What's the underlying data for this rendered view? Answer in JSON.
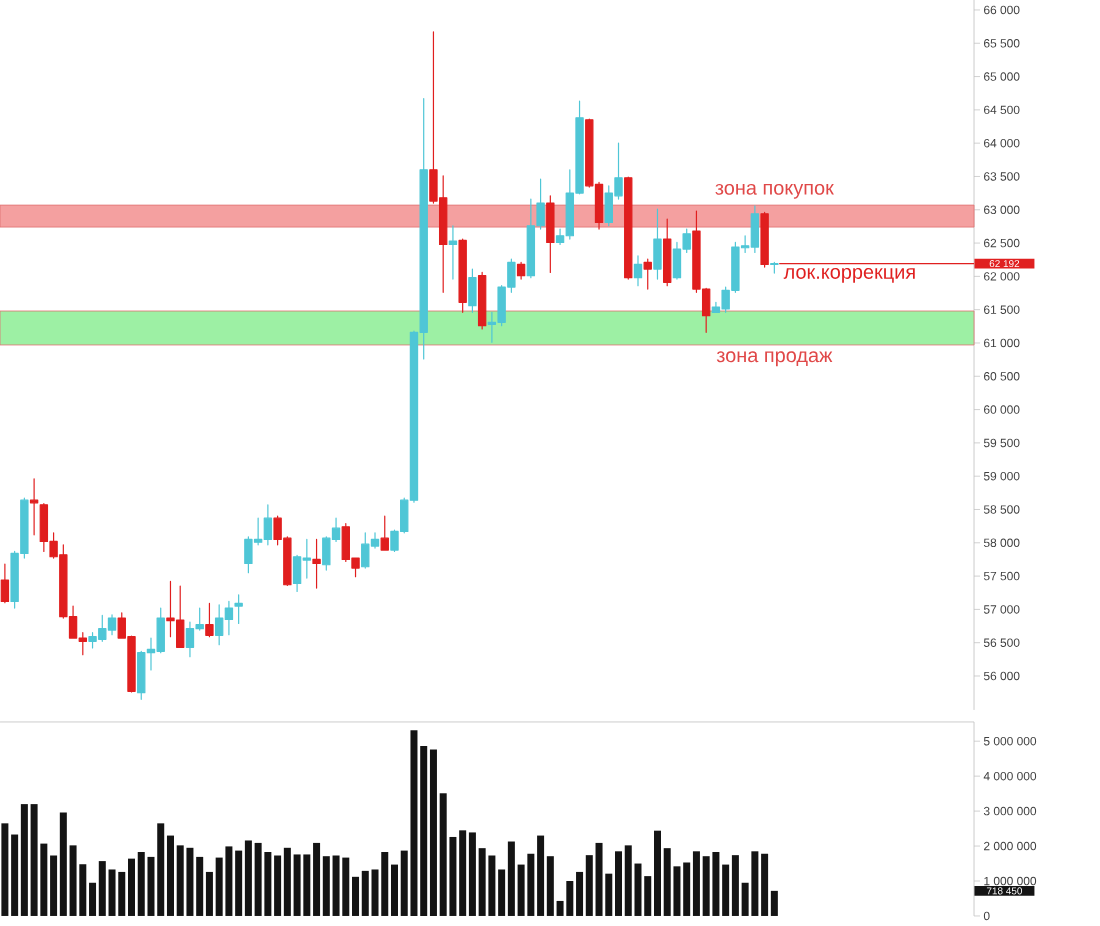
{
  "chart_data": [
    {
      "type": "candlestick",
      "categories": [
        null,
        null,
        null,
        null,
        null,
        null,
        null,
        null,
        null,
        null,
        null,
        null,
        null,
        null,
        null,
        null,
        null,
        null,
        null,
        null,
        null,
        null,
        null,
        null,
        null,
        null,
        null,
        null,
        null,
        null,
        null,
        null,
        null,
        null,
        null,
        null,
        null,
        null,
        null,
        null,
        null,
        null,
        null,
        null,
        null,
        null,
        null,
        null,
        null,
        null,
        null,
        null,
        null,
        null,
        null,
        null,
        null,
        null,
        null,
        null,
        null,
        null,
        null,
        null,
        null,
        null,
        null,
        null,
        null,
        null,
        null,
        null,
        null,
        null,
        null,
        null,
        null,
        null,
        null,
        null,
        null,
        null,
        null,
        null,
        null,
        null,
        null,
        null,
        null,
        null,
        null,
        null,
        null,
        null,
        null,
        null,
        null,
        null,
        null,
        null
      ],
      "ohlc": [
        [
          57440,
          57680,
          57100,
          57120
        ],
        [
          57120,
          57870,
          57020,
          57840
        ],
        [
          57840,
          58670,
          57770,
          58640
        ],
        [
          58640,
          58960,
          58120,
          58600
        ],
        [
          58570,
          58590,
          57870,
          58020
        ],
        [
          58020,
          58150,
          57770,
          57790
        ],
        [
          57820,
          57970,
          56870,
          56890
        ],
        [
          56890,
          57050,
          56570,
          56570
        ],
        [
          56570,
          56650,
          56320,
          56520
        ],
        [
          56520,
          56650,
          56420,
          56590
        ],
        [
          56550,
          56910,
          56520,
          56710
        ],
        [
          56690,
          56920,
          56620,
          56870
        ],
        [
          56870,
          56950,
          56570,
          56570
        ],
        [
          56590,
          56600,
          55760,
          55770
        ],
        [
          55750,
          56370,
          55650,
          56350
        ],
        [
          56350,
          56570,
          56090,
          56400
        ],
        [
          56370,
          57020,
          56350,
          56870
        ],
        [
          56870,
          57420,
          56590,
          56830
        ],
        [
          56840,
          57350,
          56430,
          56430
        ],
        [
          56430,
          56810,
          56290,
          56710
        ],
        [
          56710,
          57020,
          56690,
          56770
        ],
        [
          56770,
          57090,
          56590,
          56610
        ],
        [
          56610,
          57070,
          56470,
          56870
        ],
        [
          56850,
          57120,
          56620,
          57020
        ],
        [
          57050,
          57220,
          56790,
          57090
        ],
        [
          57690,
          58090,
          57550,
          58050
        ],
        [
          58010,
          58370,
          57970,
          58050
        ],
        [
          58050,
          58570,
          57970,
          58370
        ],
        [
          58370,
          58400,
          57970,
          58050
        ],
        [
          58070,
          58090,
          57360,
          57370
        ],
        [
          57390,
          57810,
          57270,
          57790
        ],
        [
          57740,
          58050,
          57470,
          57770
        ],
        [
          57750,
          58050,
          57320,
          57690
        ],
        [
          57670,
          58090,
          57590,
          58070
        ],
        [
          58050,
          58370,
          58020,
          58220
        ],
        [
          58240,
          58290,
          57720,
          57750
        ],
        [
          57770,
          57770,
          57490,
          57620
        ],
        [
          57640,
          58150,
          57620,
          57980
        ],
        [
          57950,
          58150,
          57920,
          58050
        ],
        [
          58070,
          58400,
          57890,
          57890
        ],
        [
          57890,
          58190,
          57870,
          58170
        ],
        [
          58170,
          58670,
          58150,
          58640
        ],
        [
          58640,
          61180,
          58610,
          61160
        ],
        [
          61160,
          64670,
          60760,
          63600
        ],
        [
          63600,
          65670,
          63100,
          63130
        ],
        [
          63180,
          63510,
          61760,
          62480
        ],
        [
          62480,
          62760,
          61960,
          62530
        ],
        [
          62540,
          62560,
          61460,
          61610
        ],
        [
          61560,
          62110,
          61460,
          61980
        ],
        [
          62010,
          62060,
          61210,
          61260
        ],
        [
          61280,
          61460,
          61010,
          61310
        ],
        [
          61310,
          61860,
          61260,
          61840
        ],
        [
          61840,
          62260,
          61760,
          62210
        ],
        [
          62180,
          62210,
          61960,
          62010
        ],
        [
          62010,
          63160,
          61980,
          62760
        ],
        [
          62760,
          63460,
          62710,
          63100
        ],
        [
          63100,
          63210,
          62060,
          62510
        ],
        [
          62510,
          62710,
          62480,
          62610
        ],
        [
          62610,
          63600,
          62560,
          63250
        ],
        [
          63250,
          64630,
          63240,
          64380
        ],
        [
          64350,
          64360,
          63340,
          63360
        ],
        [
          63380,
          63410,
          62710,
          62810
        ],
        [
          62810,
          63360,
          62760,
          63250
        ],
        [
          63210,
          64000,
          63160,
          63480
        ],
        [
          63480,
          63490,
          61960,
          61980
        ],
        [
          61980,
          62310,
          61860,
          62180
        ],
        [
          62210,
          62260,
          61810,
          62110
        ],
        [
          62110,
          63010,
          61960,
          62560
        ],
        [
          62560,
          62860,
          61860,
          61910
        ],
        [
          61980,
          62510,
          61960,
          62410
        ],
        [
          62410,
          62710,
          62360,
          62640
        ],
        [
          62680,
          62980,
          61760,
          61810
        ],
        [
          61810,
          61820,
          61160,
          61410
        ],
        [
          61460,
          61610,
          61460,
          61540
        ],
        [
          61510,
          61840,
          61460,
          61790
        ],
        [
          61790,
          62510,
          61760,
          62440
        ],
        [
          62430,
          62610,
          62360,
          62460
        ],
        [
          62440,
          63060,
          62360,
          62940
        ],
        [
          62940,
          62960,
          62140,
          62180
        ],
        [
          62180,
          62210,
          62050,
          62192
        ],
        null,
        null,
        null,
        null,
        null,
        null,
        null,
        null,
        null,
        null,
        null,
        null,
        null,
        null,
        null,
        null,
        null,
        null,
        null,
        null
      ],
      "colors": [
        "#e01e1e",
        "#4fc6d6",
        "#4fc6d6",
        "#e01e1e",
        "#e01e1e",
        "#e01e1e",
        "#e01e1e",
        "#e01e1e",
        "#e01e1e",
        "#4fc6d6",
        "#4fc6d6",
        "#4fc6d6",
        "#e01e1e",
        "#e01e1e",
        "#4fc6d6",
        "#4fc6d6",
        "#4fc6d6",
        "#e01e1e",
        "#e01e1e",
        "#4fc6d6",
        "#4fc6d6",
        "#e01e1e",
        "#4fc6d6",
        "#4fc6d6",
        "#4fc6d6",
        "#4fc6d6",
        "#4fc6d6",
        "#4fc6d6",
        "#e01e1e",
        "#e01e1e",
        "#4fc6d6",
        "#4fc6d6",
        "#e01e1e",
        "#4fc6d6",
        "#4fc6d6",
        "#e01e1e",
        "#e01e1e",
        "#4fc6d6",
        "#4fc6d6",
        "#e01e1e",
        "#4fc6d6",
        "#4fc6d6",
        "#4fc6d6",
        "#4fc6d6",
        "#e01e1e",
        "#e01e1e",
        "#4fc6d6",
        "#e01e1e",
        "#4fc6d6",
        "#e01e1e",
        "#4fc6d6",
        "#4fc6d6",
        "#4fc6d6",
        "#e01e1e",
        "#4fc6d6",
        "#4fc6d6",
        "#e01e1e",
        "#4fc6d6",
        "#4fc6d6",
        "#4fc6d6",
        "#e01e1e",
        "#e01e1e",
        "#4fc6d6",
        "#4fc6d6",
        "#e01e1e",
        "#4fc6d6",
        "#e01e1e",
        "#4fc6d6",
        "#e01e1e",
        "#4fc6d6",
        "#4fc6d6",
        "#e01e1e",
        "#e01e1e",
        "#4fc6d6",
        "#4fc6d6",
        "#4fc6d6",
        "#4fc6d6",
        "#4fc6d6",
        "#e01e1e",
        "#4fc6d6",
        null,
        null,
        null,
        null,
        null,
        null,
        null,
        null,
        null,
        null,
        null,
        null,
        null,
        null,
        null,
        null,
        null,
        null,
        null,
        null
      ],
      "ylim": [
        55490,
        66150
      ],
      "yticks": [
        {
          "value": 56000,
          "label": "56 000"
        },
        {
          "value": 56500,
          "label": "56 500"
        },
        {
          "value": 57000,
          "label": "57 000"
        },
        {
          "value": 57500,
          "label": "57 500"
        },
        {
          "value": 58000,
          "label": "58 000"
        },
        {
          "value": 58500,
          "label": "58 500"
        },
        {
          "value": 59000,
          "label": "59 000"
        },
        {
          "value": 59500,
          "label": "59 500"
        },
        {
          "value": 60000,
          "label": "60 000"
        },
        {
          "value": 60500,
          "label": "60 500"
        },
        {
          "value": 61000,
          "label": "61 000"
        },
        {
          "value": 61500,
          "label": "61 500"
        },
        {
          "value": 62000,
          "label": "62 000"
        },
        {
          "value": 62500,
          "label": "62 500"
        },
        {
          "value": 63000,
          "label": "63 000"
        },
        {
          "value": 63500,
          "label": "63 500"
        },
        {
          "value": 64000,
          "label": "64 000"
        },
        {
          "value": 64500,
          "label": "64 500"
        },
        {
          "value": 65000,
          "label": "65 000"
        },
        {
          "value": 65500,
          "label": "65 500"
        },
        {
          "value": 66000,
          "label": "66 000"
        }
      ],
      "tick_labels": "y",
      "bands": [
        {
          "axis": "y",
          "from": 62740,
          "to": 63070,
          "label": "зона покупок",
          "color": "#f4a0a0"
        },
        {
          "axis": "y",
          "from": 60970,
          "to": 61480,
          "label": "зона продаж",
          "color": "#9df0a4"
        }
      ],
      "ref_lines": [
        {
          "axis": "y",
          "value": 62192,
          "label": "лок.коррекция",
          "color": "#e02020"
        }
      ],
      "annotations": [
        "62 192"
      ]
    },
    {
      "type": "bar",
      "categories": [
        null,
        null,
        null,
        null,
        null,
        null,
        null,
        null,
        null,
        null,
        null,
        null,
        null,
        null,
        null,
        null,
        null,
        null,
        null,
        null,
        null,
        null,
        null,
        null,
        null,
        null,
        null,
        null,
        null,
        null,
        null,
        null,
        null,
        null,
        null,
        null,
        null,
        null,
        null,
        null,
        null,
        null,
        null,
        null,
        null,
        null,
        null,
        null,
        null,
        null,
        null,
        null,
        null,
        null,
        null,
        null,
        null,
        null,
        null,
        null,
        null,
        null,
        null,
        null,
        null,
        null,
        null,
        null,
        null,
        null,
        null,
        null,
        null,
        null,
        null,
        null,
        null,
        null,
        null,
        null,
        null,
        null,
        null,
        null,
        null,
        null,
        null,
        null,
        null,
        null,
        null,
        null,
        null,
        null,
        null,
        null,
        null,
        null,
        null,
        null
      ],
      "values": [
        2650000,
        2330000,
        3200000,
        3200000,
        2070000,
        1730000,
        2960000,
        2020000,
        1480000,
        950000,
        1570000,
        1330000,
        1260000,
        1640000,
        1830000,
        1690000,
        2650000,
        2300000,
        2020000,
        1950000,
        1690000,
        1260000,
        1670000,
        1990000,
        1870000,
        2160000,
        2090000,
        1830000,
        1730000,
        1950000,
        1760000,
        1760000,
        2090000,
        1710000,
        1730000,
        1670000,
        1120000,
        1290000,
        1330000,
        1830000,
        1470000,
        1870000,
        5310000,
        4860000,
        4760000,
        3510000,
        2260000,
        2450000,
        2390000,
        1940000,
        1730000,
        1330000,
        2130000,
        1470000,
        1780000,
        2300000,
        1710000,
        430000,
        1000000,
        1260000,
        1740000,
        2090000,
        1210000,
        1850000,
        2020000,
        1500000,
        1140000,
        2440000,
        1940000,
        1420000,
        1530000,
        1850000,
        1710000,
        1830000,
        1470000,
        1740000,
        950000,
        1850000,
        1780000,
        718450,
        null,
        null,
        null,
        null,
        null,
        null,
        null,
        null,
        null,
        null,
        null,
        null,
        null,
        null,
        null,
        null,
        null,
        null,
        null,
        null
      ],
      "color": "#141414",
      "ylim": [
        0,
        5550000
      ],
      "yticks": [
        {
          "value": 0,
          "label": "0"
        },
        {
          "value": 1000000,
          "label": "1 000 000"
        },
        {
          "value": 2000000,
          "label": "2 000 000"
        },
        {
          "value": 3000000,
          "label": "3 000 000"
        },
        {
          "value": 4000000,
          "label": "4 000 000"
        },
        {
          "value": 5000000,
          "label": "5 000 000"
        }
      ],
      "tick_labels": "y",
      "annotations": [
        "718 450"
      ]
    }
  ]
}
